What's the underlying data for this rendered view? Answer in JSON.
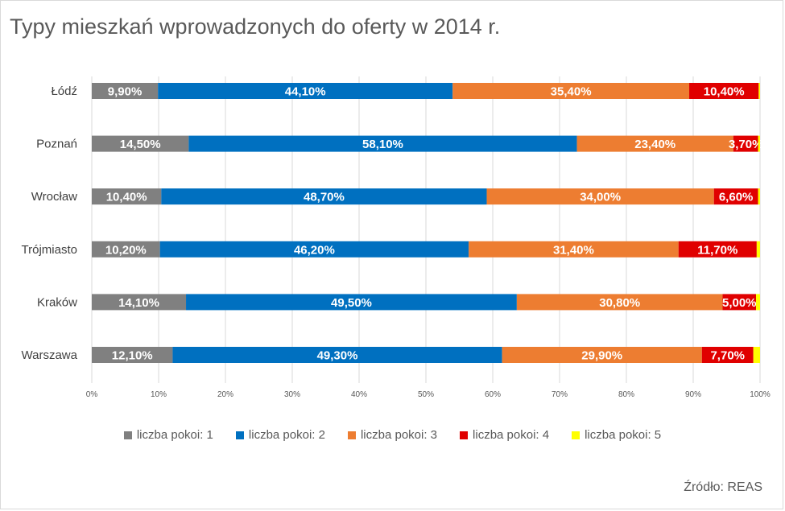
{
  "title": "Typy mieszkań wprowadzonych do oferty w 2014 r.",
  "source": "Źródło: REAS",
  "chart_data": {
    "type": "bar",
    "orientation": "horizontal",
    "stacked": "percent",
    "categories": [
      "Łódź",
      "Poznań",
      "Wrocław",
      "Trójmiasto",
      "Kraków",
      "Warszawa"
    ],
    "series": [
      {
        "name": "liczba pokoi: 1",
        "color": "#808080",
        "values": [
          9.9,
          14.5,
          10.4,
          10.2,
          14.1,
          12.1
        ],
        "labels": [
          "9,90%",
          "14,50%",
          "10,40%",
          "10,20%",
          "14,10%",
          "12,10%"
        ]
      },
      {
        "name": "liczba pokoi: 2",
        "color": "#0070C0",
        "values": [
          44.1,
          58.1,
          48.7,
          46.2,
          49.5,
          49.3
        ],
        "labels": [
          "44,10%",
          "58,10%",
          "48,70%",
          "46,20%",
          "49,50%",
          "49,30%"
        ]
      },
      {
        "name": "liczba pokoi: 3",
        "color": "#ED7D31",
        "values": [
          35.4,
          23.4,
          34.0,
          31.4,
          30.8,
          29.9
        ],
        "labels": [
          "35,40%",
          "23,40%",
          "34,00%",
          "31,40%",
          "30,80%",
          "29,90%"
        ]
      },
      {
        "name": "liczba pokoi: 4",
        "color": "#E00000",
        "values": [
          10.4,
          3.7,
          6.6,
          11.7,
          5.0,
          7.7
        ],
        "labels": [
          "10,40%",
          "3,70%",
          "6,60%",
          "11,70%",
          "5,00%",
          "7,70%"
        ]
      },
      {
        "name": "liczba pokoi: 5",
        "color": "#FFFF00",
        "values": [
          0.2,
          0.3,
          0.3,
          0.5,
          0.6,
          1.0
        ],
        "labels": [
          "",
          "",
          "",
          "",
          "",
          ""
        ]
      }
    ],
    "x_ticks": [
      "0%",
      "10%",
      "20%",
      "30%",
      "40%",
      "50%",
      "60%",
      "70%",
      "80%",
      "90%",
      "100%"
    ],
    "xlim": [
      0,
      100
    ],
    "grid": true,
    "legend_position": "bottom"
  }
}
